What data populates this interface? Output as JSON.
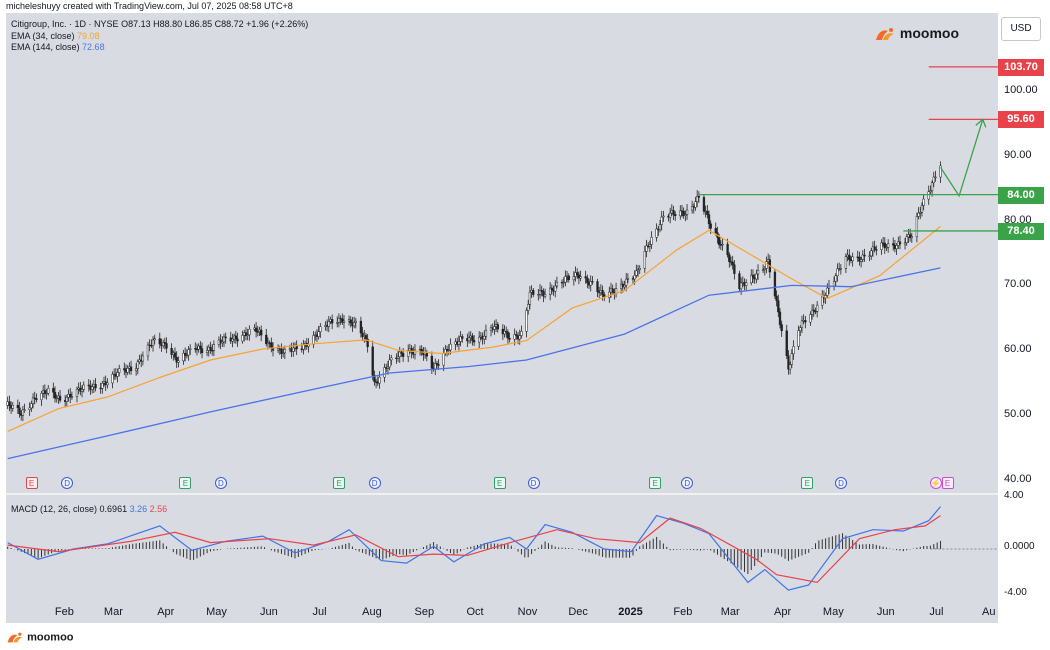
{
  "caption": "micheleshuyy created with TradingView.com, Jul 07, 2025 08:58 UTC+8",
  "legend": {
    "symbol": "Citigroup, Inc. · 1D · NYSE",
    "ohlc": "O87.13 H88.80 L86.85 C88.72 +1.96 (+2.26%)",
    "ema34_label": "EMA (34, close)",
    "ema34_value": "79.08",
    "ema144_label": "EMA (144, close)",
    "ema144_value": "72.68"
  },
  "macd_legend": {
    "label": "MACD (12, 26, close)",
    "hist": "0.6961",
    "macd": "3.26",
    "signal": "2.56"
  },
  "brand": "moomoo",
  "currency": "USD",
  "colors": {
    "ema34": "#f7a330",
    "ema144": "#4a73e8",
    "macd_line": "#3f74e6",
    "signal_line": "#e8434a",
    "red_level": "#e8434a",
    "green_level": "#3aa34a"
  },
  "events": [
    {
      "type": "E",
      "variant": "red",
      "date": "2024-01-12"
    },
    {
      "type": "D",
      "date": "2024-02-02"
    },
    {
      "type": "E",
      "date": "2024-04-12"
    },
    {
      "type": "D",
      "date": "2024-05-03"
    },
    {
      "type": "E",
      "date": "2024-07-12"
    },
    {
      "type": "D",
      "date": "2024-08-02"
    },
    {
      "type": "E",
      "date": "2024-10-15"
    },
    {
      "type": "D",
      "date": "2024-11-04"
    },
    {
      "type": "E",
      "date": "2025-01-15"
    },
    {
      "type": "D",
      "date": "2025-02-03"
    },
    {
      "type": "E",
      "date": "2025-04-15"
    },
    {
      "type": "D",
      "date": "2025-05-05"
    },
    {
      "type": "bolt",
      "date": "2025-06-30"
    },
    {
      "type": "E",
      "variant": "mag",
      "date": "2025-07-07"
    }
  ],
  "chart_data": [
    {
      "type": "candlestick",
      "title": "Citigroup, Inc. · 1D · NYSE",
      "ylim": [
        38,
        112
      ],
      "y_ticks": [
        "40.00",
        "50.00",
        "60.00",
        "70.00",
        "80.00",
        "90.00",
        "100.00"
      ],
      "x_ticks": [
        "Feb",
        "Mar",
        "Apr",
        "May",
        "Jun",
        "Jul",
        "Aug",
        "Sep",
        "Oct",
        "Nov",
        "Dec",
        "2025",
        "Feb",
        "Mar",
        "Apr",
        "May",
        "Jun",
        "Jul",
        "Au"
      ],
      "x_range": [
        "2024-01-01",
        "2025-08-10"
      ],
      "close_path": [
        [
          "2024-01-02",
          51.5
        ],
        [
          "2024-01-10",
          50.2
        ],
        [
          "2024-01-18",
          52.8
        ],
        [
          "2024-01-26",
          53.5
        ],
        [
          "2024-02-02",
          52.5
        ],
        [
          "2024-02-12",
          53.6
        ],
        [
          "2024-02-22",
          54.5
        ],
        [
          "2024-03-01",
          55.2
        ],
        [
          "2024-03-08",
          56.5
        ],
        [
          "2024-03-18",
          57.8
        ],
        [
          "2024-03-28",
          61.2
        ],
        [
          "2024-04-05",
          61.0
        ],
        [
          "2024-04-12",
          58.2
        ],
        [
          "2024-04-22",
          60.5
        ],
        [
          "2024-05-01",
          60.2
        ],
        [
          "2024-05-10",
          61.6
        ],
        [
          "2024-05-20",
          62.4
        ],
        [
          "2024-05-28",
          63.0
        ],
        [
          "2024-06-05",
          61.0
        ],
        [
          "2024-06-14",
          59.5
        ],
        [
          "2024-06-25",
          60.8
        ],
        [
          "2024-07-03",
          62.5
        ],
        [
          "2024-07-12",
          64.5
        ],
        [
          "2024-07-18",
          65.0
        ],
        [
          "2024-07-26",
          63.8
        ],
        [
          "2024-08-02",
          61.0
        ],
        [
          "2024-08-06",
          55.0
        ],
        [
          "2024-08-15",
          58.0
        ],
        [
          "2024-08-26",
          60.2
        ],
        [
          "2024-09-03",
          59.8
        ],
        [
          "2024-09-10",
          57.0
        ],
        [
          "2024-09-18",
          60.5
        ],
        [
          "2024-09-27",
          61.5
        ],
        [
          "2024-10-07",
          62.0
        ],
        [
          "2024-10-15",
          63.5
        ],
        [
          "2024-10-25",
          62.2
        ],
        [
          "2024-11-01",
          62.5
        ],
        [
          "2024-11-06",
          68.5
        ],
        [
          "2024-11-15",
          69.0
        ],
        [
          "2024-11-25",
          70.5
        ],
        [
          "2024-12-05",
          71.8
        ],
        [
          "2024-12-13",
          70.2
        ],
        [
          "2024-12-19",
          68.2
        ],
        [
          "2024-12-31",
          70.3
        ],
        [
          "2025-01-08",
          71.5
        ],
        [
          "2025-01-15",
          76.5
        ],
        [
          "2025-01-24",
          80.5
        ],
        [
          "2025-01-31",
          81.0
        ],
        [
          "2025-02-07",
          81.5
        ],
        [
          "2025-02-14",
          83.5
        ],
        [
          "2025-02-21",
          79.0
        ],
        [
          "2025-03-03",
          75.0
        ],
        [
          "2025-03-10",
          69.5
        ],
        [
          "2025-03-18",
          71.5
        ],
        [
          "2025-03-27",
          73.5
        ],
        [
          "2025-04-04",
          63.0
        ],
        [
          "2025-04-08",
          57.5
        ],
        [
          "2025-04-14",
          63.5
        ],
        [
          "2025-04-22",
          65.5
        ],
        [
          "2025-05-01",
          69.5
        ],
        [
          "2025-05-12",
          74.0
        ],
        [
          "2025-05-22",
          74.5
        ],
        [
          "2025-06-02",
          76.0
        ],
        [
          "2025-06-12",
          76.5
        ],
        [
          "2025-06-20",
          77.5
        ],
        [
          "2025-06-26",
          82.5
        ],
        [
          "2025-07-03",
          86.5
        ],
        [
          "2025-07-07",
          88.7
        ]
      ],
      "series": [
        {
          "name": "EMA (34, close)",
          "points": [
            [
              "2024-01-02",
              47.5
            ],
            [
              "2024-02-01",
              51.0
            ],
            [
              "2024-03-01",
              52.8
            ],
            [
              "2024-04-01",
              55.8
            ],
            [
              "2024-05-01",
              58.5
            ],
            [
              "2024-06-01",
              60.2
            ],
            [
              "2024-07-01",
              61.0
            ],
            [
              "2024-08-01",
              61.6
            ],
            [
              "2024-08-20",
              60.0
            ],
            [
              "2024-09-15",
              59.5
            ],
            [
              "2024-10-15",
              60.5
            ],
            [
              "2024-11-04",
              61.5
            ],
            [
              "2024-12-01",
              66.5
            ],
            [
              "2025-01-01",
              69.2
            ],
            [
              "2025-02-01",
              75.5
            ],
            [
              "2025-02-20",
              78.5
            ],
            [
              "2025-03-15",
              75.0
            ],
            [
              "2025-04-10",
              71.0
            ],
            [
              "2025-05-01",
              68.0
            ],
            [
              "2025-06-01",
              71.5
            ],
            [
              "2025-07-07",
              79.1
            ]
          ]
        },
        {
          "name": "EMA (144, close)",
          "points": [
            [
              "2024-01-02",
              43.3
            ],
            [
              "2024-03-01",
              46.8
            ],
            [
              "2024-05-01",
              50.5
            ],
            [
              "2024-07-01",
              54.0
            ],
            [
              "2024-08-15",
              56.5
            ],
            [
              "2024-10-01",
              57.5
            ],
            [
              "2024-11-04",
              58.5
            ],
            [
              "2025-01-01",
              62.5
            ],
            [
              "2025-02-20",
              68.5
            ],
            [
              "2025-04-10",
              70.0
            ],
            [
              "2025-05-15",
              69.8
            ],
            [
              "2025-07-07",
              72.7
            ]
          ]
        }
      ],
      "levels": [
        {
          "label": "103.70",
          "value": 103.7,
          "color": "red"
        },
        {
          "label": "95.60",
          "value": 95.6,
          "color": "red"
        },
        {
          "label": "84.00",
          "value": 84.0,
          "color": "green"
        },
        {
          "label": "78.40",
          "value": 78.4,
          "color": "green"
        }
      ],
      "projection": [
        [
          "2025-07-07",
          88.2
        ],
        [
          "2025-07-18",
          83.8
        ],
        [
          "2025-08-01",
          95.6
        ]
      ]
    },
    {
      "type": "histogram+line",
      "title": "MACD (12, 26, close)",
      "ylim": [
        -4.2,
        4.2
      ],
      "y_ticks": [
        "4.00",
        "0.0000",
        "-4.00"
      ],
      "series": [
        {
          "name": "MACD",
          "points": [
            [
              "2024-01-02",
              0.5
            ],
            [
              "2024-01-20",
              -0.8
            ],
            [
              "2024-02-10",
              0.0
            ],
            [
              "2024-03-01",
              0.4
            ],
            [
              "2024-04-01",
              1.8
            ],
            [
              "2024-04-20",
              -0.1
            ],
            [
              "2024-05-10",
              0.6
            ],
            [
              "2024-06-01",
              1.0
            ],
            [
              "2024-06-20",
              -0.3
            ],
            [
              "2024-07-10",
              0.6
            ],
            [
              "2024-07-22",
              1.5
            ],
            [
              "2024-08-10",
              -0.9
            ],
            [
              "2024-08-25",
              -1.1
            ],
            [
              "2024-09-10",
              0.2
            ],
            [
              "2024-09-22",
              -1.0
            ],
            [
              "2024-10-10",
              0.4
            ],
            [
              "2024-10-25",
              0.9
            ],
            [
              "2024-11-04",
              0.0
            ],
            [
              "2024-11-15",
              1.9
            ],
            [
              "2024-12-01",
              1.3
            ],
            [
              "2024-12-20",
              0.0
            ],
            [
              "2025-01-05",
              -0.2
            ],
            [
              "2025-01-20",
              2.6
            ],
            [
              "2025-02-05",
              2.0
            ],
            [
              "2025-02-20",
              1.2
            ],
            [
              "2025-03-15",
              -2.6
            ],
            [
              "2025-03-25",
              -1.6
            ],
            [
              "2025-04-08",
              -3.2
            ],
            [
              "2025-04-20",
              -2.8
            ],
            [
              "2025-05-10",
              0.8
            ],
            [
              "2025-05-28",
              1.5
            ],
            [
              "2025-06-15",
              1.4
            ],
            [
              "2025-06-30",
              2.2
            ],
            [
              "2025-07-07",
              3.3
            ]
          ]
        },
        {
          "name": "Signal",
          "points": [
            [
              "2024-01-02",
              0.3
            ],
            [
              "2024-02-01",
              -0.2
            ],
            [
              "2024-03-15",
              0.6
            ],
            [
              "2024-04-10",
              1.3
            ],
            [
              "2024-05-01",
              0.5
            ],
            [
              "2024-06-05",
              0.8
            ],
            [
              "2024-07-01",
              0.3
            ],
            [
              "2024-07-26",
              1.1
            ],
            [
              "2024-08-20",
              -0.6
            ],
            [
              "2024-09-10",
              -0.4
            ],
            [
              "2024-09-30",
              -0.5
            ],
            [
              "2024-10-28",
              0.6
            ],
            [
              "2024-11-22",
              1.5
            ],
            [
              "2024-12-15",
              0.8
            ],
            [
              "2025-01-10",
              0.5
            ],
            [
              "2025-01-28",
              2.4
            ],
            [
              "2025-02-15",
              1.6
            ],
            [
              "2025-03-20",
              -0.8
            ],
            [
              "2025-04-01",
              -2.0
            ],
            [
              "2025-04-25",
              -2.6
            ],
            [
              "2025-05-20",
              0.8
            ],
            [
              "2025-06-10",
              1.5
            ],
            [
              "2025-06-28",
              1.8
            ],
            [
              "2025-07-07",
              2.6
            ]
          ]
        }
      ]
    }
  ]
}
